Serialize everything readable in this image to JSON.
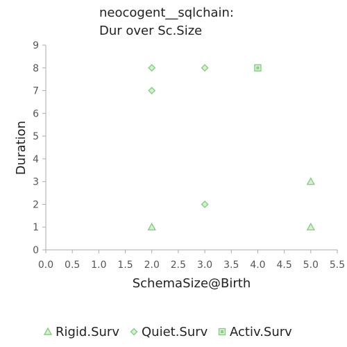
{
  "chart_data": {
    "type": "scatter",
    "title_lines": [
      "neocogent__sqlchain:",
      "Dur over Sc.Size"
    ],
    "xlabel": "SchemaSize@Birth",
    "ylabel": "Duration",
    "xlim": [
      0,
      5.5
    ],
    "ylim": [
      0,
      9
    ],
    "x_ticks": [
      0.0,
      0.5,
      1.0,
      1.5,
      2.0,
      2.5,
      3.0,
      3.5,
      4.0,
      4.5,
      5.0,
      5.5
    ],
    "x_tick_labels": [
      "0.0",
      "0.5",
      "1.0",
      "1.5",
      "2.0",
      "2.5",
      "3.0",
      "3.5",
      "4.0",
      "4.5",
      "5.0",
      "5.5"
    ],
    "y_ticks": [
      0,
      1,
      2,
      3,
      4,
      5,
      6,
      7,
      8,
      9
    ],
    "y_tick_labels": [
      "0",
      "1",
      "2",
      "3",
      "4",
      "5",
      "6",
      "7",
      "8",
      "9"
    ],
    "grid": false,
    "legend_position": "bottom",
    "series": [
      {
        "name": "Rigid.Surv",
        "marker": "triangle",
        "color": "#88cc88",
        "points": [
          [
            2,
            1
          ],
          [
            5,
            1
          ],
          [
            5,
            3
          ]
        ]
      },
      {
        "name": "Quiet.Surv",
        "marker": "diamond",
        "color": "#88cc88",
        "points": [
          [
            2,
            7
          ],
          [
            2,
            8
          ],
          [
            3,
            8
          ],
          [
            3,
            2
          ]
        ]
      },
      {
        "name": "Activ.Surv",
        "marker": "square",
        "color": "#88cc88",
        "points": [
          [
            4,
            8
          ]
        ]
      }
    ]
  }
}
